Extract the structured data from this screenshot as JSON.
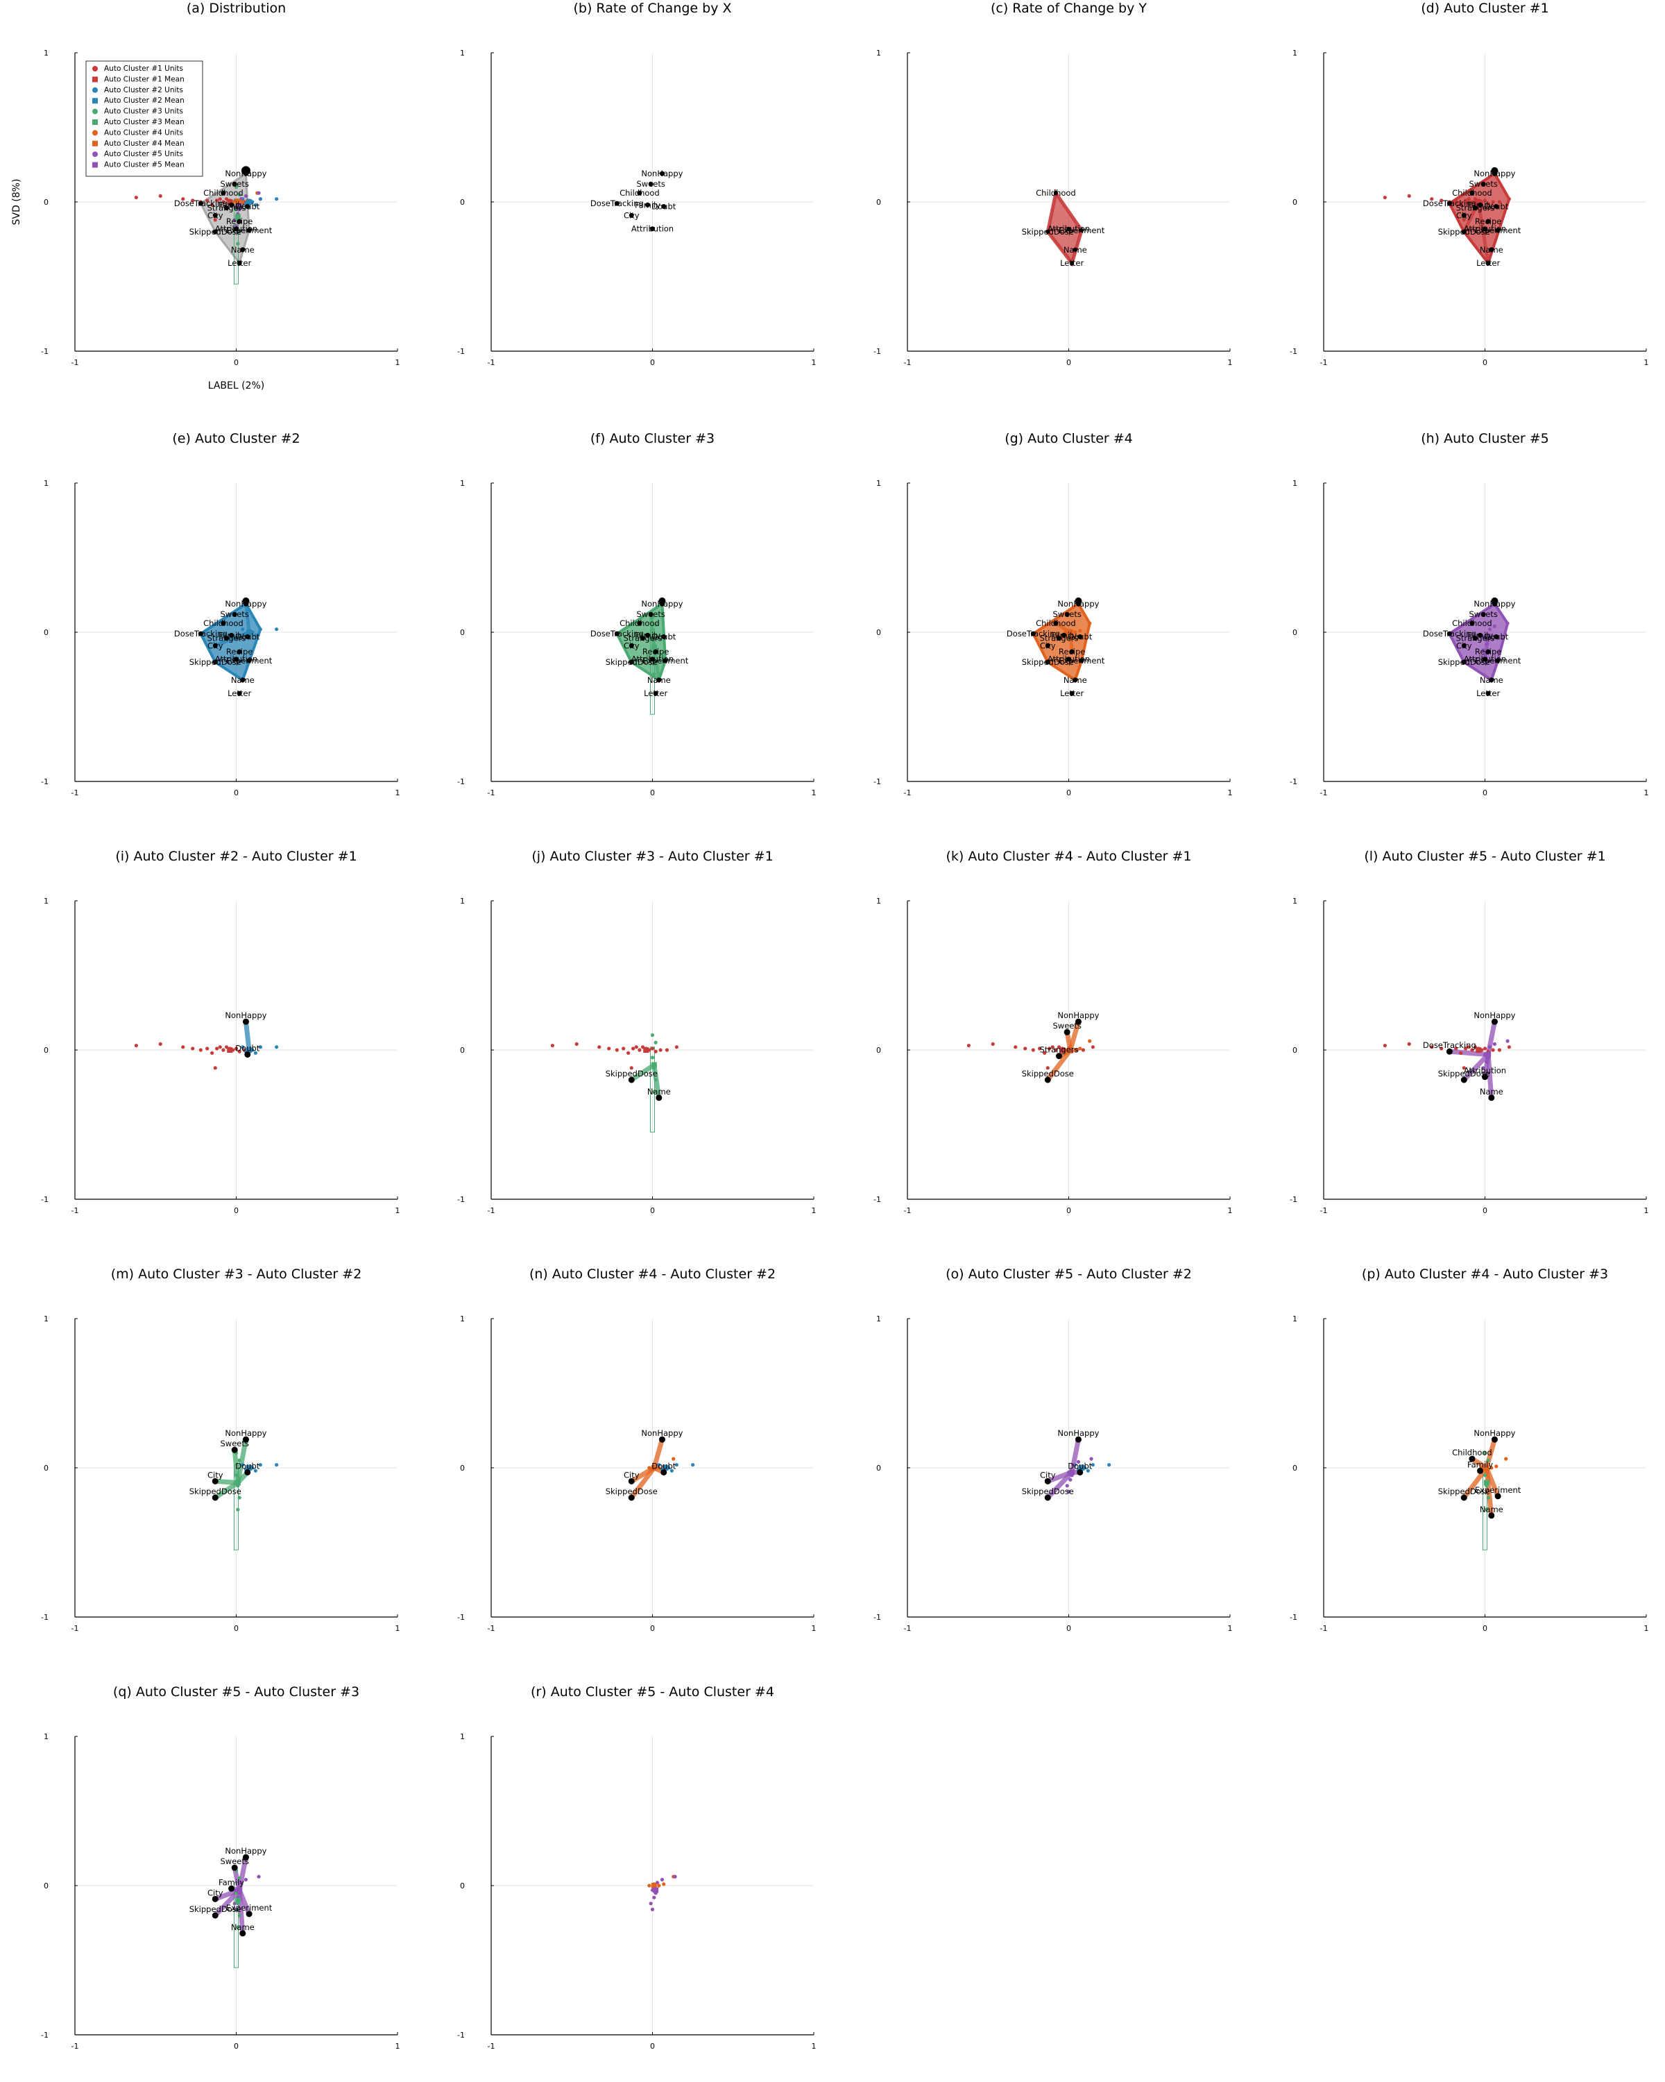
{
  "colors": {
    "c1": "#c83b3b",
    "c2": "#2b86b8",
    "c3": "#4aab72",
    "c4": "#e1621c",
    "c5": "#9152b5",
    "gray": "#9a9a9a",
    "black": "#000000"
  },
  "chart_data": {
    "type": "scatter",
    "xlim": [
      -1,
      1
    ],
    "ylim": [
      -1,
      1
    ],
    "xticks": [
      "-1",
      "0",
      "1"
    ],
    "yticks": [
      "-1",
      "0",
      "1"
    ],
    "grid": true,
    "xlabel": "LABEL (2%)",
    "ylabel": "SVD (8%)",
    "legend": {
      "placement": "top-left",
      "entries": [
        {
          "label": "Auto Cluster #1 Units",
          "cluster": 1,
          "kind": "units"
        },
        {
          "label": "Auto Cluster #1 Mean",
          "cluster": 1,
          "kind": "mean"
        },
        {
          "label": "Auto Cluster #2 Units",
          "cluster": 2,
          "kind": "units"
        },
        {
          "label": "Auto Cluster #2 Mean",
          "cluster": 2,
          "kind": "mean"
        },
        {
          "label": "Auto Cluster #3 Units",
          "cluster": 3,
          "kind": "units"
        },
        {
          "label": "Auto Cluster #3 Mean",
          "cluster": 3,
          "kind": "mean"
        },
        {
          "label": "Auto Cluster #4 Units",
          "cluster": 4,
          "kind": "units"
        },
        {
          "label": "Auto Cluster #4 Mean",
          "cluster": 4,
          "kind": "mean"
        },
        {
          "label": "Auto Cluster #5 Units",
          "cluster": 5,
          "kind": "units"
        },
        {
          "label": "Auto Cluster #5 Mean",
          "cluster": 5,
          "kind": "mean"
        }
      ]
    },
    "words": [
      {
        "text": "NonHappy",
        "x": 0.06,
        "y": 0.19,
        "cluster": 2
      },
      {
        "text": "Sweets",
        "x": -0.01,
        "y": 0.12,
        "cluster": 3
      },
      {
        "text": "Childhood",
        "x": -0.08,
        "y": 0.06,
        "cluster": 4
      },
      {
        "text": "DoseTracking",
        "x": -0.22,
        "y": -0.01,
        "cluster": 1
      },
      {
        "text": "Doubt",
        "x": 0.07,
        "y": -0.03,
        "cluster": 2
      },
      {
        "text": "Family",
        "x": -0.03,
        "y": -0.02,
        "cluster": 4
      },
      {
        "text": "City",
        "x": -0.13,
        "y": -0.09,
        "cluster": 2
      },
      {
        "text": "Recipe",
        "x": 0.02,
        "y": -0.13,
        "cluster": 4
      },
      {
        "text": "Strangers",
        "x": -0.06,
        "y": -0.04,
        "cluster": 4
      },
      {
        "text": "Attribution",
        "x": 0.0,
        "y": -0.18,
        "cluster": 5
      },
      {
        "text": "SkippedDose",
        "x": -0.13,
        "y": -0.2,
        "cluster": 1
      },
      {
        "text": "Experiment",
        "x": 0.08,
        "y": -0.19,
        "cluster": 3
      },
      {
        "text": "Name",
        "x": 0.04,
        "y": -0.32,
        "cluster": 3
      },
      {
        "text": "Letter",
        "x": 0.02,
        "y": -0.41,
        "cluster": 1
      }
    ],
    "units": [
      {
        "cluster": 1,
        "points": [
          [
            -0.62,
            0.03
          ],
          [
            -0.47,
            0.04
          ],
          [
            -0.33,
            0.02
          ],
          [
            -0.27,
            0.01
          ],
          [
            -0.22,
            0.0
          ],
          [
            -0.18,
            0.01
          ],
          [
            -0.15,
            -0.02
          ],
          [
            -0.12,
            0.01
          ],
          [
            -0.1,
            0.02
          ],
          [
            -0.08,
            0.0
          ],
          [
            -0.06,
            0.02
          ],
          [
            -0.04,
            0.01
          ],
          [
            -0.02,
            0.0
          ],
          [
            0.0,
            0.01
          ],
          [
            0.02,
            -0.01
          ],
          [
            0.05,
            0.0
          ],
          [
            0.09,
            0.0
          ],
          [
            0.15,
            0.02
          ],
          [
            -0.13,
            -0.12
          ]
        ]
      },
      {
        "cluster": 2,
        "points": [
          [
            0.04,
            0.02
          ],
          [
            0.06,
            -0.01
          ],
          [
            0.1,
            0.0
          ],
          [
            0.15,
            0.02
          ],
          [
            0.25,
            0.02
          ],
          [
            0.08,
            0.01
          ],
          [
            0.12,
            -0.02
          ]
        ]
      },
      {
        "cluster": 3,
        "points": [
          [
            0.0,
            -0.05
          ],
          [
            0.01,
            -0.12
          ],
          [
            0.02,
            -0.2
          ],
          [
            0.01,
            -0.28
          ],
          [
            0.0,
            0.1
          ],
          [
            0.02,
            0.05
          ]
        ]
      },
      {
        "cluster": 4,
        "points": [
          [
            -0.02,
            0.0
          ],
          [
            0.01,
            0.01
          ],
          [
            0.04,
            0.0
          ],
          [
            0.07,
            0.01
          ],
          [
            0.13,
            0.06
          ]
        ]
      },
      {
        "cluster": 5,
        "points": [
          [
            0.0,
            -0.03
          ],
          [
            0.01,
            -0.08
          ],
          [
            -0.01,
            -0.12
          ],
          [
            0.0,
            -0.16
          ],
          [
            0.02,
            -0.05
          ],
          [
            0.03,
            0.02
          ],
          [
            0.06,
            0.04
          ],
          [
            0.14,
            0.06
          ]
        ]
      }
    ],
    "means": [
      {
        "cluster": 1,
        "x": -0.04,
        "y": 0.0
      },
      {
        "cluster": 2,
        "x": 0.08,
        "y": 0.0
      },
      {
        "cluster": 3,
        "x": 0.01,
        "y": -0.1
      },
      {
        "cluster": 4,
        "x": 0.01,
        "y": 0.0
      },
      {
        "cluster": 5,
        "x": 0.02,
        "y": -0.03
      }
    ],
    "panels": [
      {
        "title": "(a) Distribution",
        "mode": "dist",
        "legend": true,
        "axis_labels": true
      },
      {
        "title": "(b) Rate of Change by X",
        "mode": "rx"
      },
      {
        "title": "(c) Rate of Change by Y",
        "mode": "ry"
      },
      {
        "title": "(d) Auto Cluster #1",
        "mode": "single",
        "clusters": [
          1
        ]
      },
      {
        "title": "(e) Auto Cluster #2",
        "mode": "single",
        "clusters": [
          2
        ]
      },
      {
        "title": "(f) Auto Cluster #3",
        "mode": "single",
        "clusters": [
          3
        ]
      },
      {
        "title": "(g) Auto Cluster #4",
        "mode": "single",
        "clusters": [
          4
        ]
      },
      {
        "title": "(h) Auto Cluster #5",
        "mode": "single",
        "clusters": [
          5
        ]
      },
      {
        "title": "(i) Auto Cluster #2 - Auto Cluster #1",
        "mode": "pair",
        "clusters": [
          2,
          1
        ],
        "words": [
          "NonHappy",
          "Doubt"
        ]
      },
      {
        "title": "(j) Auto Cluster #3 - Auto Cluster #1",
        "mode": "pair",
        "clusters": [
          3,
          1
        ],
        "words": [
          "SkippedDose",
          "Name"
        ]
      },
      {
        "title": "(k) Auto Cluster #4 - Auto Cluster #1",
        "mode": "pair",
        "clusters": [
          4,
          1
        ],
        "words": [
          "NonHappy",
          "Sweets",
          "Strangers",
          "SkippedDose"
        ]
      },
      {
        "title": "(l) Auto Cluster #5 - Auto Cluster #1",
        "mode": "pair",
        "clusters": [
          5,
          1
        ],
        "words": [
          "NonHappy",
          "DoseTracking",
          "SkippedDose",
          "Attribution",
          "Name"
        ]
      },
      {
        "title": "(m) Auto Cluster #3 - Auto Cluster #2",
        "mode": "pair",
        "clusters": [
          3,
          2
        ],
        "words": [
          "NonHappy",
          "Sweets",
          "Doubt",
          "City",
          "SkippedDose"
        ]
      },
      {
        "title": "(n) Auto Cluster #4 - Auto Cluster #2",
        "mode": "pair",
        "clusters": [
          4,
          2
        ],
        "words": [
          "NonHappy",
          "Doubt",
          "City",
          "SkippedDose"
        ]
      },
      {
        "title": "(o) Auto Cluster #5 - Auto Cluster #2",
        "mode": "pair",
        "clusters": [
          5,
          2
        ],
        "words": [
          "NonHappy",
          "Doubt",
          "City",
          "SkippedDose"
        ]
      },
      {
        "title": "(p) Auto Cluster #4 - Auto Cluster #3",
        "mode": "pair",
        "clusters": [
          4,
          3
        ],
        "words": [
          "NonHappy",
          "Family",
          "Childhood",
          "SkippedDose",
          "Experiment",
          "Name"
        ]
      },
      {
        "title": "(q) Auto Cluster #5 - Auto Cluster #3",
        "mode": "pair",
        "clusters": [
          5,
          3
        ],
        "words": [
          "NonHappy",
          "Sweets",
          "Family",
          "City",
          "SkippedDose",
          "Experiment",
          "Name"
        ]
      },
      {
        "title": "(r) Auto Cluster #5 - Auto Cluster #4",
        "mode": "pair",
        "clusters": [
          5,
          4
        ],
        "words": []
      }
    ]
  }
}
